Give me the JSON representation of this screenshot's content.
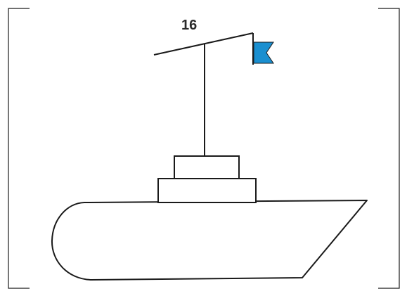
{
  "page": {
    "number_label": "16"
  },
  "picture": {
    "subject": "ship-outline",
    "flag_color": "#1a8fd0",
    "line_color": "#1a1a1a",
    "background_color": "#ffffff"
  }
}
